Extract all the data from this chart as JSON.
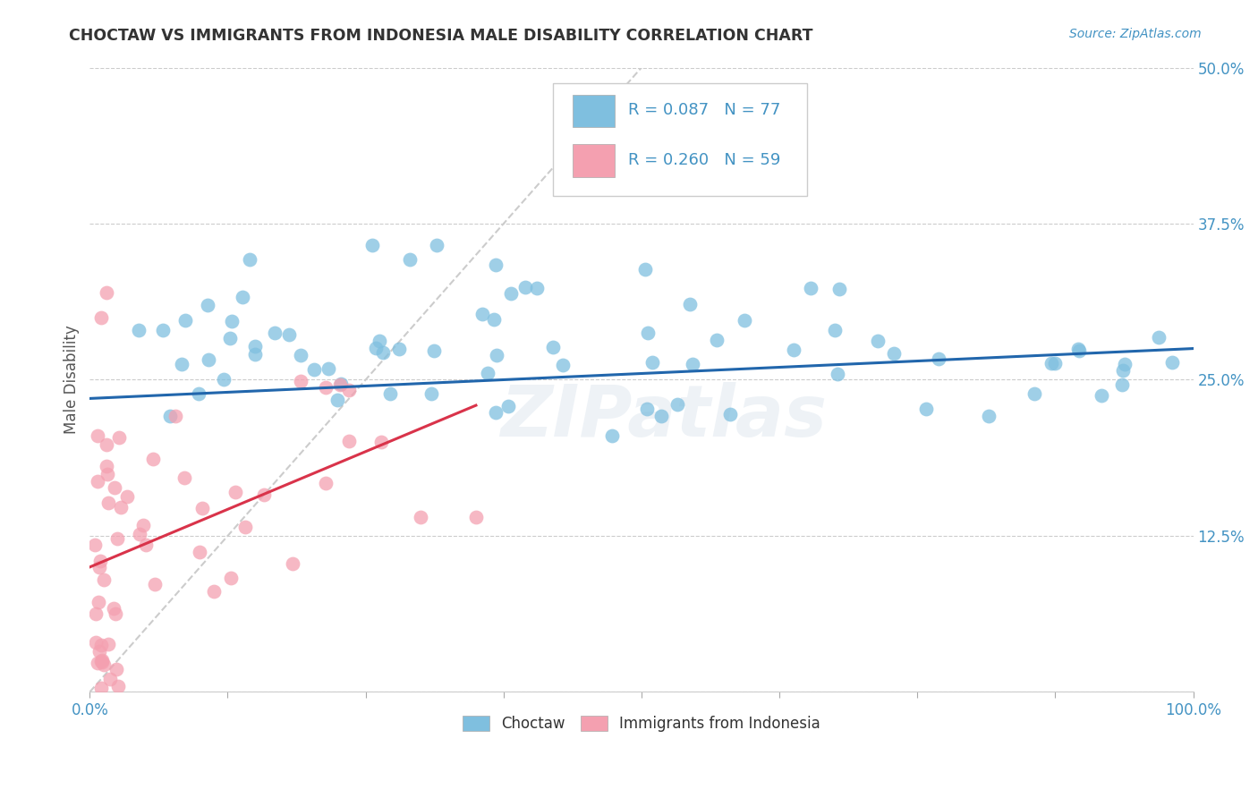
{
  "title": "CHOCTAW VS IMMIGRANTS FROM INDONESIA MALE DISABILITY CORRELATION CHART",
  "source": "Source: ZipAtlas.com",
  "ylabel": "Male Disability",
  "legend_label1": "Choctaw",
  "legend_label2": "Immigrants from Indonesia",
  "R1": 0.087,
  "N1": 77,
  "R2": 0.26,
  "N2": 59,
  "watermark": "ZIPatlas",
  "color1": "#7fbfdf",
  "color2": "#f4a0b0",
  "trendline1_color": "#2166ac",
  "trendline2_color": "#d9334a",
  "trendline_dashed_color": "#cccccc",
  "xlim": [
    0,
    1.0
  ],
  "ylim": [
    0,
    0.5
  ],
  "xticks": [
    0.0,
    0.125,
    0.25,
    0.375,
    0.5,
    0.625,
    0.75,
    0.875,
    1.0
  ],
  "yticks": [
    0.0,
    0.125,
    0.25,
    0.375,
    0.5
  ],
  "tick_color": "#4393c3"
}
